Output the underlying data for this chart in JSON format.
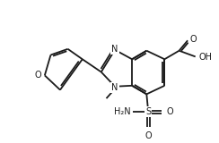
{
  "bg_color": "#ffffff",
  "line_color": "#1a1a1a",
  "line_width": 1.3,
  "font_size": 7.0,
  "figsize": [
    2.44,
    1.6
  ],
  "dpi": 100,
  "xlim": [
    0,
    244
  ],
  "ylim": [
    0,
    160
  ]
}
